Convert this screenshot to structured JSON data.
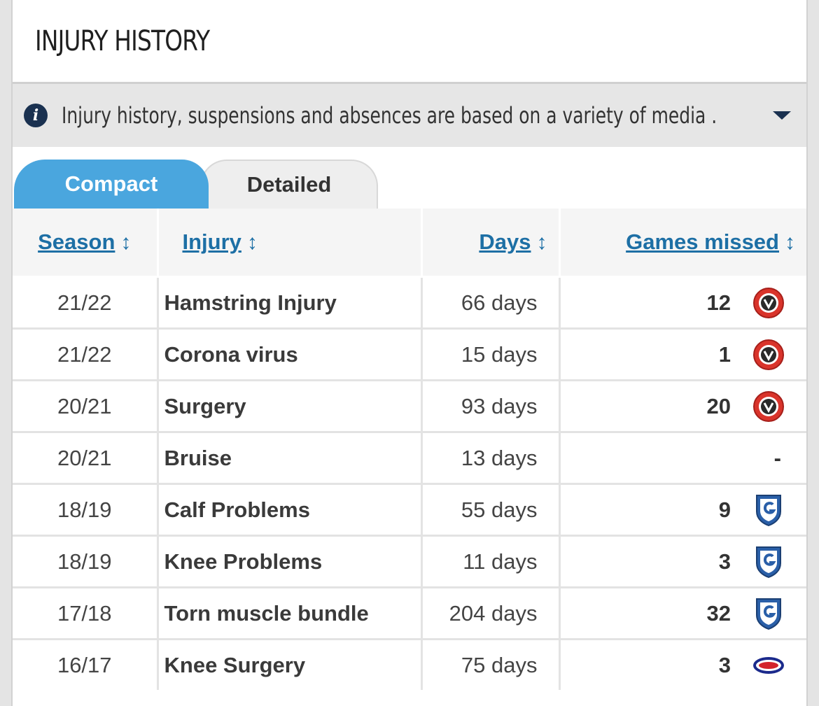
{
  "header": {
    "title": "INJURY HISTORY"
  },
  "notice": {
    "icon": "info-icon",
    "text": "Injury history, suspensions and absences are based on a variety of media ...",
    "expand_icon": "caret-down-icon"
  },
  "tabs": [
    {
      "label": "Compact",
      "active": true
    },
    {
      "label": "Detailed",
      "active": false
    }
  ],
  "table": {
    "columns": [
      {
        "label": "Season",
        "sort_icon": "sort-icon"
      },
      {
        "label": "Injury",
        "sort_icon": "sort-icon"
      },
      {
        "label": "Days",
        "sort_icon": "sort-icon"
      },
      {
        "label": "Games missed",
        "sort_icon": "sort-icon"
      }
    ],
    "rows": [
      {
        "season": "21/22",
        "injury": "Hamstring Injury",
        "days": "66 days",
        "games": "12",
        "club": "sheffield-united-crest-icon"
      },
      {
        "season": "21/22",
        "injury": "Corona virus",
        "days": "15 days",
        "games": "1",
        "club": "sheffield-united-crest-icon"
      },
      {
        "season": "20/21",
        "injury": "Surgery",
        "days": "93 days",
        "games": "20",
        "club": "sheffield-united-crest-icon"
      },
      {
        "season": "20/21",
        "injury": "Bruise",
        "days": "13 days",
        "games": "-",
        "club": ""
      },
      {
        "season": "18/19",
        "injury": "Calf Problems",
        "days": "55 days",
        "games": "9",
        "club": "genk-crest-icon"
      },
      {
        "season": "18/19",
        "injury": "Knee Problems",
        "days": "11 days",
        "games": "3",
        "club": "genk-crest-icon"
      },
      {
        "season": "17/18",
        "injury": "Torn muscle bundle",
        "days": "204 days",
        "games": "32",
        "club": "genk-crest-icon"
      },
      {
        "season": "16/17",
        "injury": "Knee Surgery",
        "days": "75 days",
        "games": "3",
        "club": "valerenga-crest-icon"
      }
    ]
  },
  "colors": {
    "tab_active": "#4aa6de",
    "link": "#1d6fa5",
    "info_icon_bg": "#1a3150"
  }
}
